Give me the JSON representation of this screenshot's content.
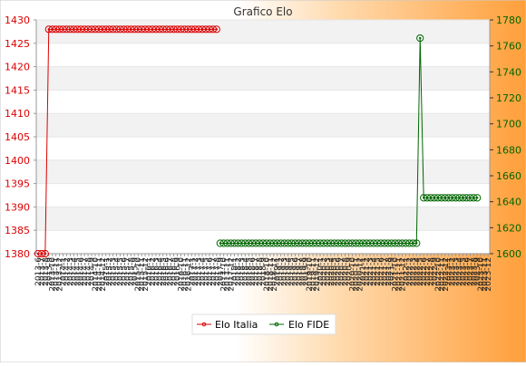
{
  "chart_data": {
    "type": "line",
    "title": "Grafico Elo",
    "legend_position": "bottom",
    "grid": true,
    "left_axis": {
      "ylim": [
        1380,
        1430
      ],
      "ticks": [
        1380,
        1385,
        1390,
        1395,
        1400,
        1405,
        1410,
        1415,
        1420,
        1425,
        1430
      ],
      "color": "#dd0000"
    },
    "right_axis": {
      "ylim": [
        1600,
        1780
      ],
      "ticks": [
        1600,
        1620,
        1640,
        1660,
        1680,
        1700,
        1720,
        1740,
        1760,
        1780
      ],
      "color": "#006600"
    },
    "x_labels": [
      "2013-6",
      "2013-7",
      "2013-8",
      "2013-9",
      "2013-10",
      "2013-11",
      "2013-12",
      "2014-1",
      "2014-2",
      "2014-3",
      "2014-4",
      "2014-5",
      "2014-6",
      "2014-7",
      "2014-8",
      "2014-9",
      "2014-10",
      "2014-11",
      "2014-12",
      "2015-1",
      "2015-2",
      "2015-3",
      "2015-4",
      "2015-5",
      "2015-6",
      "2015-7",
      "2015-8",
      "2015-9",
      "2015-10",
      "2015-11",
      "2015-12",
      "2016-1",
      "2016-2",
      "2016-3",
      "2016-4",
      "2016-5",
      "2016-6",
      "2016-7",
      "2016-8",
      "2016-9",
      "2016-10",
      "2016-11",
      "2016-12",
      "2017-1",
      "2017-2",
      "2017-3",
      "2017-4",
      "2017-5",
      "2017-6",
      "2017-7",
      "2017-8",
      "2017-9",
      "2017-10",
      "2017-11",
      "2017-12",
      "2018-1",
      "2018-2",
      "2018-3",
      "2018-4",
      "2018-5",
      "2018-6",
      "2018-7",
      "2018-8",
      "2018-9",
      "2018-10",
      "2018-11",
      "2018-12",
      "2019-1",
      "2019-2",
      "2019-3",
      "2019-4",
      "2019-5",
      "2019-6",
      "2019-7",
      "2019-8",
      "2019-9",
      "2019-10",
      "2019-11",
      "2019-12",
      "2020-1",
      "2020-2",
      "2020-3",
      "2020-4",
      "2020-5",
      "2020-6",
      "2020-7",
      "2020-8",
      "2020-9",
      "2020-10",
      "2020-11",
      "2020-12",
      "2021-1",
      "2021-2",
      "2021-3",
      "2021-4",
      "2021-5",
      "2021-6",
      "2021-7",
      "2021-8",
      "2021-9",
      "2021-10",
      "2021-11",
      "2021-12",
      "2022-1",
      "2022-2",
      "2022-3",
      "2022-4",
      "2022-5",
      "2022-6",
      "2022-7",
      "2022-8",
      "2022-9",
      "2022-10",
      "2022-11",
      "2022-12",
      "2023-1",
      "2023-2",
      "2023-3",
      "2023-4",
      "2023-5",
      "2023-6",
      "2023-7",
      "2023-8",
      "2023-9",
      "2023-10",
      "2023-11",
      "2023-12"
    ],
    "series": [
      {
        "name": "Elo Italia",
        "axis": "left",
        "color": "#dd0000",
        "segments": [
          {
            "start": 0,
            "count": 3,
            "value": 1380
          },
          {
            "start": 3,
            "count": 48,
            "value": 1428
          }
        ]
      },
      {
        "name": "Elo FIDE",
        "axis": "right",
        "color": "#006600",
        "segments": [
          {
            "start": 51,
            "count": 56,
            "value": 1608
          },
          {
            "start": 107,
            "count": 1,
            "value": 1766
          },
          {
            "start": 108,
            "count": 16,
            "value": 1643
          }
        ]
      }
    ]
  }
}
